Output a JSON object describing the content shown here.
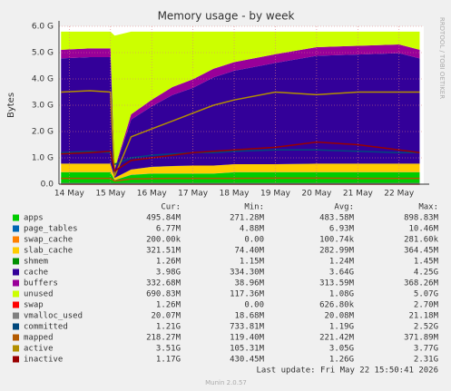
{
  "chart_data": {
    "type": "area",
    "title": "Memory usage - by week",
    "y_label": "Bytes",
    "side_text": "RRDTOOL / TOBI OETIKER",
    "columns": [
      "Cur:",
      "Min:",
      "Avg:",
      "Max:"
    ],
    "last_update": "Last update: Fri May 22 15:50:41 2026",
    "footer": "Munin 2.0.57",
    "grid": true,
    "xlim": [
      13.75,
      22.6
    ],
    "xticks": [
      {
        "value": 14,
        "label": "14 May"
      },
      {
        "value": 15,
        "label": "15 May"
      },
      {
        "value": 16,
        "label": "16 May"
      },
      {
        "value": 17,
        "label": "17 May"
      },
      {
        "value": 18,
        "label": "18 May"
      },
      {
        "value": 19,
        "label": "19 May"
      },
      {
        "value": 20,
        "label": "20 May"
      },
      {
        "value": 21,
        "label": "21 May"
      },
      {
        "value": 22,
        "label": "22 May"
      }
    ],
    "ylim": [
      0,
      6
    ],
    "yticks": [
      {
        "value": 0,
        "label": "0.0"
      },
      {
        "value": 1,
        "label": "1.0 G"
      },
      {
        "value": 2,
        "label": "2.0 G"
      },
      {
        "value": 3,
        "label": "3.0 G"
      },
      {
        "value": 4,
        "label": "4.0 G"
      },
      {
        "value": 5,
        "label": "5.0 G"
      },
      {
        "value": 6,
        "label": "6.0 G"
      }
    ],
    "x": [
      13.8,
      14.5,
      15.0,
      15.1,
      15.5,
      16,
      16.5,
      17,
      17.5,
      18,
      19,
      20,
      21,
      22,
      22.5
    ],
    "series": [
      {
        "name": "apps",
        "kind": "stack",
        "color": "#00cc00",
        "cur": "495.84M",
        "min": "271.28M",
        "avg": "483.58M",
        "max": "898.83M",
        "values": [
          0.45,
          0.45,
          0.45,
          0.15,
          0.35,
          0.4,
          0.4,
          0.4,
          0.4,
          0.45,
          0.45,
          0.45,
          0.45,
          0.45,
          0.45
        ]
      },
      {
        "name": "page_tables",
        "kind": "stack",
        "color": "#0066b3",
        "cur": "6.77M",
        "min": "4.88M",
        "avg": "6.93M",
        "max": "10.46M",
        "values": [
          0.007,
          0.007,
          0.007,
          0.005,
          0.006,
          0.007,
          0.007,
          0.007,
          0.007,
          0.007,
          0.007,
          0.007,
          0.007,
          0.007,
          0.007
        ]
      },
      {
        "name": "swap_cache",
        "kind": "stack",
        "color": "#ff8000",
        "cur": "200.00k",
        "min": "0.00",
        "avg": "100.74k",
        "max": "281.60k",
        "values": [
          0.0002,
          0.0002,
          0.0002,
          0,
          0.0001,
          0.0001,
          0.0001,
          0.0001,
          0.0001,
          0.0001,
          0.0001,
          0.0002,
          0.0002,
          0.0002,
          0.0002
        ]
      },
      {
        "name": "slab_cache",
        "kind": "stack",
        "color": "#ffcc00",
        "cur": "321.51M",
        "min": "74.40M",
        "avg": "282.99M",
        "max": "364.45M",
        "values": [
          0.32,
          0.32,
          0.32,
          0.08,
          0.2,
          0.25,
          0.28,
          0.3,
          0.3,
          0.3,
          0.3,
          0.32,
          0.32,
          0.32,
          0.32
        ]
      },
      {
        "name": "shmem",
        "kind": "stack",
        "color": "#008f00",
        "cur": "1.26M",
        "min": "1.15M",
        "avg": "1.24M",
        "max": "1.45M",
        "values": [
          0.0013,
          0.0013,
          0.0013,
          0.0012,
          0.0012,
          0.0012,
          0.0012,
          0.0012,
          0.0012,
          0.0012,
          0.0012,
          0.0013,
          0.0013,
          0.0013,
          0.0013
        ]
      },
      {
        "name": "cache",
        "kind": "stack",
        "color": "#330099",
        "cur": "3.98G",
        "min": "334.30M",
        "avg": "3.64G",
        "max": "4.25G",
        "values": [
          4.0,
          4.05,
          4.05,
          0.3,
          1.9,
          2.3,
          2.7,
          2.95,
          3.35,
          3.55,
          3.85,
          4.1,
          4.15,
          4.2,
          4.0
        ]
      },
      {
        "name": "buffers",
        "kind": "stack",
        "color": "#990099",
        "cur": "332.68M",
        "min": "38.96M",
        "avg": "313.59M",
        "max": "368.26M",
        "values": [
          0.33,
          0.33,
          0.33,
          0.04,
          0.2,
          0.25,
          0.3,
          0.33,
          0.33,
          0.33,
          0.33,
          0.33,
          0.33,
          0.33,
          0.33
        ]
      },
      {
        "name": "unused",
        "kind": "stack",
        "color": "#ccff00",
        "cur": "690.83M",
        "min": "117.36M",
        "avg": "1.08G",
        "max": "5.07G",
        "values": [
          0.69,
          0.64,
          0.64,
          5.07,
          3.14,
          2.59,
          2.11,
          1.81,
          1.41,
          1.16,
          0.86,
          0.59,
          0.54,
          0.49,
          0.69
        ]
      },
      {
        "name": "swap",
        "kind": "line",
        "color": "#ff0000",
        "cur": "1.26M",
        "min": "0.00",
        "avg": "626.80k",
        "max": "2.70M",
        "values": [
          0.001,
          0.001,
          0.001,
          0,
          0.0005,
          0.0005,
          0.0005,
          0.0006,
          0.0006,
          0.0006,
          0.0006,
          0.001,
          0.001,
          0.001,
          0.001
        ]
      },
      {
        "name": "vmalloc_used",
        "kind": "line",
        "color": "#808080",
        "cur": "20.07M",
        "min": "18.68M",
        "avg": "20.08M",
        "max": "21.18M",
        "values": [
          0.02,
          0.02,
          0.02,
          0.019,
          0.02,
          0.02,
          0.02,
          0.02,
          0.02,
          0.02,
          0.02,
          0.02,
          0.02,
          0.02,
          0.02
        ]
      },
      {
        "name": "committed",
        "kind": "line",
        "color": "#00487d",
        "cur": "1.21G",
        "min": "733.81M",
        "avg": "1.19G",
        "max": "2.52G",
        "values": [
          1.2,
          1.25,
          1.2,
          0.75,
          1.0,
          1.1,
          1.15,
          1.2,
          1.2,
          1.25,
          1.3,
          1.3,
          1.25,
          1.2,
          1.2
        ]
      },
      {
        "name": "mapped",
        "kind": "line",
        "color": "#b35a00",
        "cur": "218.27M",
        "min": "119.40M",
        "avg": "221.42M",
        "max": "371.89M",
        "values": [
          0.22,
          0.22,
          0.22,
          0.12,
          0.2,
          0.21,
          0.22,
          0.22,
          0.22,
          0.22,
          0.23,
          0.23,
          0.22,
          0.22,
          0.22
        ]
      },
      {
        "name": "active",
        "kind": "line",
        "color": "#b38f00",
        "cur": "3.51G",
        "min": "105.31M",
        "avg": "3.05G",
        "max": "3.77G",
        "values": [
          3.5,
          3.55,
          3.5,
          0.3,
          1.8,
          2.1,
          2.4,
          2.7,
          3.0,
          3.2,
          3.5,
          3.4,
          3.5,
          3.5,
          3.5
        ]
      },
      {
        "name": "inactive",
        "kind": "line",
        "color": "#990000",
        "cur": "1.17G",
        "min": "430.45M",
        "avg": "1.26G",
        "max": "2.31G",
        "values": [
          1.15,
          1.2,
          1.25,
          0.5,
          0.9,
          1.0,
          1.1,
          1.2,
          1.25,
          1.3,
          1.4,
          1.6,
          1.5,
          1.3,
          1.2
        ]
      }
    ]
  }
}
